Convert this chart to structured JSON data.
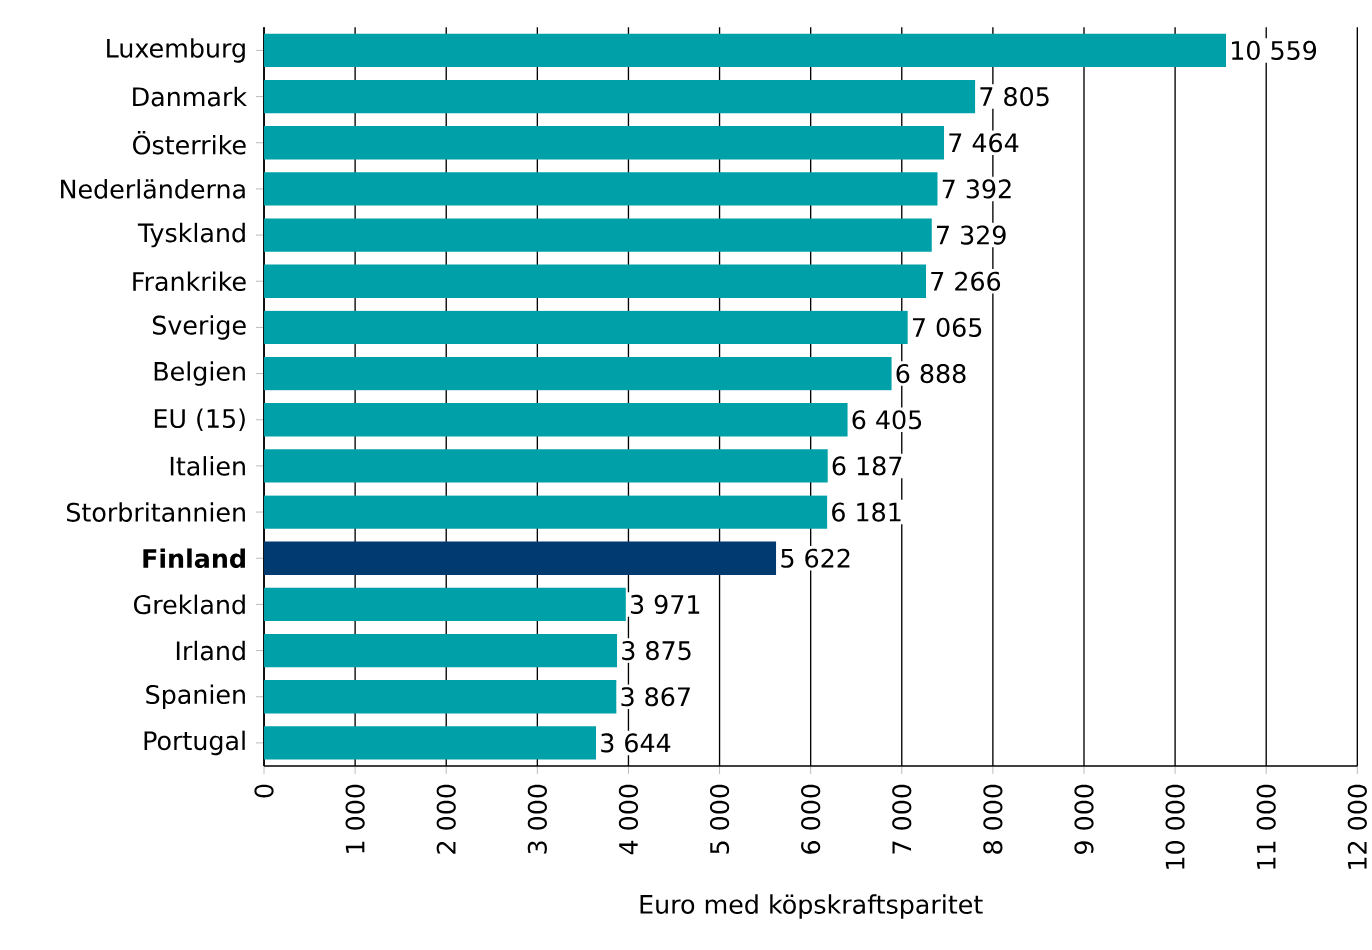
{
  "chart_data": {
    "type": "bar",
    "orientation": "horizontal",
    "xlabel": "Euro med köpskraftsparitet",
    "categories": [
      "Luxemburg",
      "Danmark",
      "Österrike",
      "Nederländerna",
      "Tyskland",
      "Frankrike",
      "Sverige",
      "Belgien",
      "EU (15)",
      "Italien",
      "Storbritannien",
      "Finland",
      "Grekland",
      "Irland",
      "Spanien",
      "Portugal"
    ],
    "values": [
      10559,
      7805,
      7464,
      7392,
      7329,
      7266,
      7065,
      6888,
      6405,
      6187,
      6181,
      5622,
      3971,
      3875,
      3867,
      3644
    ],
    "value_labels": [
      "10 559",
      "7 805",
      "7 464",
      "7 392",
      "7 329",
      "7 266",
      "7 065",
      "6 888",
      "6 405",
      "6 187",
      "6 181",
      "5 622",
      "3 971",
      "3 875",
      "3 867",
      "3 644"
    ],
    "colors": [
      "#00a0a8",
      "#00a0a8",
      "#00a0a8",
      "#00a0a8",
      "#00a0a8",
      "#00a0a8",
      "#00a0a8",
      "#00a0a8",
      "#00a0a8",
      "#00a0a8",
      "#00a0a8",
      "#003a70",
      "#00a0a8",
      "#00a0a8",
      "#00a0a8",
      "#00a0a8"
    ],
    "xlim": [
      0,
      12000
    ],
    "xticks": [
      0,
      {
        "value": 1000,
        "label": "1 000"
      },
      {
        "value": 2000,
        "label": "2 000"
      },
      {
        "value": 3000,
        "label": "3 000"
      },
      {
        "value": 4000,
        "label": "4 000"
      },
      {
        "value": 5000,
        "label": "5 000"
      },
      {
        "value": 6000,
        "label": "6 000"
      },
      {
        "value": 7000,
        "label": "7 000"
      },
      {
        "value": 8000,
        "label": "8 000"
      },
      {
        "value": 9000,
        "label": "9 000"
      },
      {
        "value": 10000,
        "label": "10 000"
      },
      {
        "value": 11000,
        "label": "11 000"
      },
      {
        "value": 12000,
        "label": "12 000"
      }
    ],
    "grid": "x"
  }
}
